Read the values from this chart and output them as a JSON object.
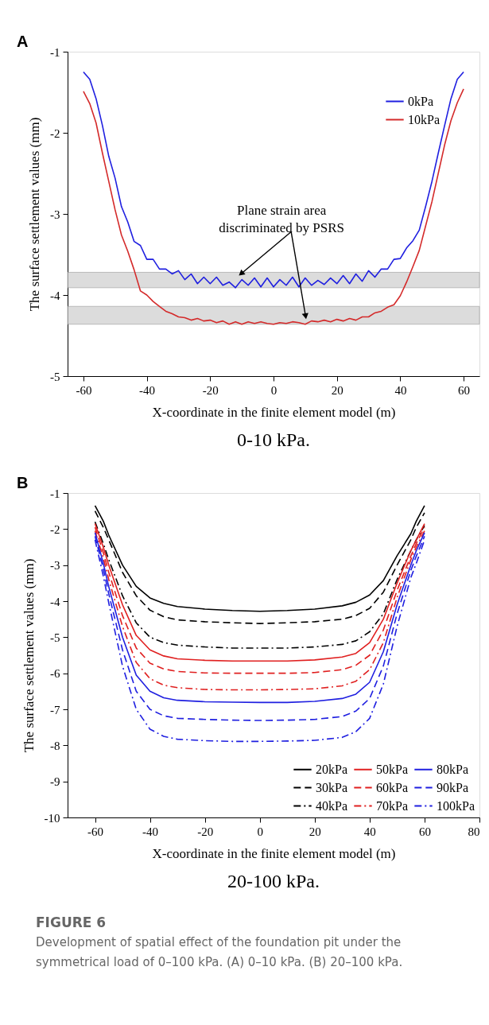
{
  "chart_data": [
    {
      "type": "line",
      "title": "0-10 kPa.",
      "xlabel": "X-coordinate in the finite element model (m)",
      "ylabel": "The surface settlement values (mm)",
      "xlim": [
        -65,
        65
      ],
      "xticks": [
        -60,
        -40,
        -20,
        0,
        20,
        40,
        60
      ],
      "ylim": [
        -5,
        -1
      ],
      "yticks": [
        -5,
        -4,
        -3,
        -2,
        -1
      ],
      "legend": "top right",
      "grid": false,
      "x": [
        -60,
        -58,
        -56,
        -54,
        -52,
        -50,
        -48,
        -46,
        -44,
        -42,
        -40,
        -38,
        -36,
        -34,
        -32,
        -30,
        -28,
        -26,
        -24,
        -22,
        -20,
        -18,
        -16,
        -14,
        -12,
        -10,
        -8,
        -6,
        -4,
        -2,
        0,
        2,
        4,
        6,
        8,
        10,
        12,
        14,
        16,
        18,
        20,
        22,
        24,
        26,
        28,
        30,
        32,
        34,
        36,
        38,
        40,
        42,
        44,
        46,
        48,
        50,
        52,
        54,
        56,
        58,
        60
      ],
      "series": [
        {
          "name": "0kPa",
          "color": "#1f1fe0",
          "line_style": "solid",
          "values": [
            -1.25,
            -1.34,
            -1.58,
            -1.91,
            -2.29,
            -2.56,
            -2.91,
            -3.1,
            -3.34,
            -3.39,
            -3.56,
            -3.56,
            -3.68,
            -3.68,
            -3.74,
            -3.7,
            -3.81,
            -3.74,
            -3.86,
            -3.78,
            -3.86,
            -3.78,
            -3.88,
            -3.84,
            -3.91,
            -3.81,
            -3.88,
            -3.79,
            -3.9,
            -3.79,
            -3.9,
            -3.81,
            -3.88,
            -3.78,
            -3.9,
            -3.79,
            -3.88,
            -3.82,
            -3.87,
            -3.79,
            -3.86,
            -3.76,
            -3.86,
            -3.74,
            -3.83,
            -3.7,
            -3.78,
            -3.68,
            -3.68,
            -3.56,
            -3.55,
            -3.42,
            -3.33,
            -3.2,
            -2.91,
            -2.6,
            -2.25,
            -1.91,
            -1.58,
            -1.34,
            -1.25
          ]
        },
        {
          "name": "10kPa",
          "color": "#d42a2a",
          "line_style": "solid",
          "values": [
            -1.49,
            -1.64,
            -1.88,
            -2.25,
            -2.6,
            -2.95,
            -3.26,
            -3.46,
            -3.69,
            -3.95,
            -4.0,
            -4.08,
            -4.14,
            -4.2,
            -4.23,
            -4.27,
            -4.28,
            -4.31,
            -4.29,
            -4.32,
            -4.31,
            -4.34,
            -4.32,
            -4.36,
            -4.33,
            -4.36,
            -4.33,
            -4.35,
            -4.33,
            -4.35,
            -4.36,
            -4.34,
            -4.35,
            -4.33,
            -4.34,
            -4.36,
            -4.32,
            -4.33,
            -4.31,
            -4.33,
            -4.3,
            -4.32,
            -4.29,
            -4.31,
            -4.27,
            -4.27,
            -4.22,
            -4.2,
            -4.15,
            -4.12,
            -4.01,
            -3.84,
            -3.65,
            -3.45,
            -3.15,
            -2.85,
            -2.5,
            -2.15,
            -1.85,
            -1.63,
            -1.46
          ]
        }
      ],
      "bands": [
        {
          "axis": "y",
          "from": -3.72,
          "to": -3.91,
          "color": "#d4d4d4"
        },
        {
          "axis": "y",
          "from": -4.14,
          "to": -4.36,
          "color": "#d4d4d4"
        }
      ],
      "annotations": [
        "A",
        {
          "text": "Plane strain area\ndiscriminated by PSRS",
          "x": -10,
          "y": -3.73
        }
      ]
    },
    {
      "type": "line",
      "title": "20-100 kPa.",
      "xlabel": "X-coordinate in the finite element model (m)",
      "ylabel": "The surface settlement values (mm)",
      "xlim": [
        -70,
        80
      ],
      "xticks": [
        -60,
        -40,
        -20,
        0,
        20,
        40,
        60,
        80
      ],
      "ylim": [
        -10,
        -1
      ],
      "yticks": [
        -10,
        -9,
        -8,
        -7,
        -6,
        -5,
        -4,
        -3,
        -2,
        -1
      ],
      "legend": "bottom right",
      "grid": false,
      "x": [
        -60,
        -57,
        -55,
        -50,
        -45,
        -40,
        -35,
        -30,
        -20,
        -10,
        0,
        10,
        20,
        30,
        35,
        40,
        45,
        50,
        55,
        57,
        60
      ],
      "series": [
        {
          "name": "20kPa",
          "color": "#000000",
          "line_style": "solid",
          "values": [
            -1.35,
            -1.78,
            -2.17,
            -3.0,
            -3.59,
            -3.91,
            -4.06,
            -4.15,
            -4.22,
            -4.26,
            -4.28,
            -4.26,
            -4.22,
            -4.13,
            -4.03,
            -3.83,
            -3.43,
            -2.74,
            -2.13,
            -1.78,
            -1.35
          ]
        },
        {
          "name": "30kPa",
          "color": "#000000",
          "line_style": "dashed",
          "values": [
            -1.5,
            -1.95,
            -2.3,
            -3.2,
            -3.85,
            -4.25,
            -4.43,
            -4.52,
            -4.57,
            -4.6,
            -4.62,
            -4.6,
            -4.57,
            -4.5,
            -4.4,
            -4.2,
            -3.75,
            -3.0,
            -2.3,
            -1.95,
            -1.55
          ]
        },
        {
          "name": "40kPa",
          "color": "#000000",
          "line_style": "dashdot",
          "values": [
            -1.8,
            -2.4,
            -2.85,
            -3.85,
            -4.6,
            -5.0,
            -5.15,
            -5.22,
            -5.27,
            -5.3,
            -5.3,
            -5.3,
            -5.27,
            -5.2,
            -5.1,
            -4.85,
            -4.35,
            -3.4,
            -2.6,
            -2.3,
            -1.9
          ]
        },
        {
          "name": "50kPa",
          "color": "#e02020",
          "line_style": "solid",
          "values": [
            -1.85,
            -2.5,
            -3.0,
            -4.1,
            -4.95,
            -5.35,
            -5.52,
            -5.6,
            -5.64,
            -5.66,
            -5.66,
            -5.66,
            -5.63,
            -5.55,
            -5.45,
            -5.15,
            -4.5,
            -3.5,
            -2.6,
            -2.3,
            -1.85
          ]
        },
        {
          "name": "60kPa",
          "color": "#e02020",
          "line_style": "dashed",
          "values": [
            -1.95,
            -2.65,
            -3.2,
            -4.4,
            -5.3,
            -5.72,
            -5.88,
            -5.95,
            -5.99,
            -6.0,
            -6.0,
            -6.0,
            -5.98,
            -5.9,
            -5.78,
            -5.5,
            -4.8,
            -3.7,
            -2.75,
            -2.4,
            -1.95
          ]
        },
        {
          "name": "70kPa",
          "color": "#e02020",
          "line_style": "dashdot",
          "values": [
            -2.05,
            -2.8,
            -3.4,
            -4.7,
            -5.7,
            -6.15,
            -6.33,
            -6.4,
            -6.45,
            -6.46,
            -6.46,
            -6.45,
            -6.43,
            -6.35,
            -6.22,
            -5.9,
            -5.15,
            -3.9,
            -2.85,
            -2.5,
            -2.05
          ]
        },
        {
          "name": "80kPa",
          "color": "#1f1fe0",
          "line_style": "solid",
          "values": [
            -2.1,
            -2.95,
            -3.6,
            -5.0,
            -6.05,
            -6.5,
            -6.68,
            -6.75,
            -6.79,
            -6.8,
            -6.81,
            -6.81,
            -6.78,
            -6.7,
            -6.58,
            -6.25,
            -5.4,
            -4.1,
            -3.0,
            -2.6,
            -2.1
          ]
        },
        {
          "name": "90kPa",
          "color": "#1f1fe0",
          "line_style": "dashed",
          "values": [
            -2.2,
            -3.1,
            -3.8,
            -5.35,
            -6.5,
            -7.0,
            -7.18,
            -7.25,
            -7.28,
            -7.3,
            -7.31,
            -7.3,
            -7.28,
            -7.2,
            -7.05,
            -6.7,
            -5.8,
            -4.35,
            -3.15,
            -2.75,
            -2.2
          ]
        },
        {
          "name": "100kPa",
          "color": "#1f1fe0",
          "line_style": "dashdot",
          "values": [
            -2.3,
            -3.3,
            -4.05,
            -5.8,
            -7.0,
            -7.55,
            -7.75,
            -7.83,
            -7.87,
            -7.89,
            -7.89,
            -7.88,
            -7.86,
            -7.78,
            -7.62,
            -7.25,
            -6.3,
            -4.7,
            -3.35,
            -2.95,
            -2.3
          ]
        }
      ],
      "annotations": [
        "B",
        "FIGURE 6",
        "Development of spatial effect of the foundation pit under the symmetrical load of 0–100 kPa. (A) 0–10 kPa. (B) 20–100 kPa."
      ]
    }
  ]
}
